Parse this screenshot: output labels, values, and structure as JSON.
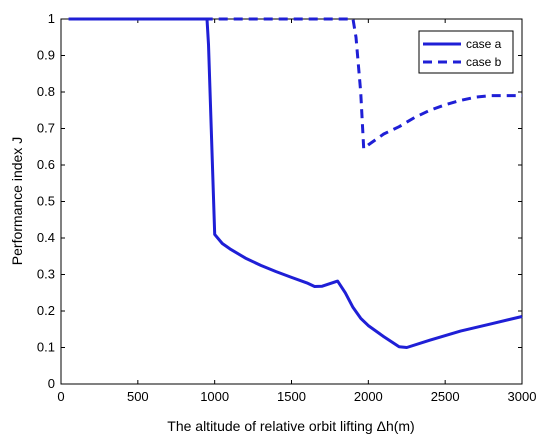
{
  "chart_data": {
    "type": "line",
    "title": "",
    "xlabel": "The altitude of relative orbit lifting  Δh(m)",
    "ylabel": "Performance index J",
    "xlim": [
      0,
      3000
    ],
    "ylim": [
      0,
      1
    ],
    "x_ticks": [
      "0",
      "500",
      "1000",
      "1500",
      "2000",
      "2500",
      "3000"
    ],
    "y_ticks": [
      "0",
      "0.1",
      "0.2",
      "0.3",
      "0.4",
      "0.5",
      "0.6",
      "0.7",
      "0.8",
      "0.9",
      "1"
    ],
    "grid": false,
    "legend_position": "top-right",
    "colors": {
      "series": "#1f1fd6",
      "axis": "#000000",
      "background": "#ffffff"
    },
    "series": [
      {
        "name": "case a",
        "line_style": "solid",
        "points": [
          [
            50,
            1.0
          ],
          [
            950,
            1.0
          ],
          [
            960,
            0.93
          ],
          [
            1000,
            0.41
          ],
          [
            1050,
            0.385
          ],
          [
            1100,
            0.37
          ],
          [
            1200,
            0.345
          ],
          [
            1300,
            0.325
          ],
          [
            1400,
            0.308
          ],
          [
            1500,
            0.292
          ],
          [
            1600,
            0.277
          ],
          [
            1650,
            0.267
          ],
          [
            1700,
            0.268
          ],
          [
            1800,
            0.282
          ],
          [
            1850,
            0.25
          ],
          [
            1900,
            0.21
          ],
          [
            1950,
            0.18
          ],
          [
            2000,
            0.16
          ],
          [
            2100,
            0.13
          ],
          [
            2200,
            0.102
          ],
          [
            2250,
            0.1
          ],
          [
            2400,
            0.12
          ],
          [
            2600,
            0.145
          ],
          [
            2800,
            0.165
          ],
          [
            3000,
            0.185
          ]
        ]
      },
      {
        "name": "case b",
        "line_style": "dashed",
        "points": [
          [
            50,
            1.0
          ],
          [
            1900,
            1.0
          ],
          [
            1920,
            0.95
          ],
          [
            1950,
            0.8
          ],
          [
            1970,
            0.645
          ],
          [
            2000,
            0.655
          ],
          [
            2100,
            0.685
          ],
          [
            2200,
            0.705
          ],
          [
            2300,
            0.73
          ],
          [
            2400,
            0.75
          ],
          [
            2500,
            0.765
          ],
          [
            2600,
            0.777
          ],
          [
            2700,
            0.786
          ],
          [
            2800,
            0.79
          ],
          [
            2900,
            0.79
          ],
          [
            3000,
            0.79
          ]
        ]
      }
    ]
  }
}
